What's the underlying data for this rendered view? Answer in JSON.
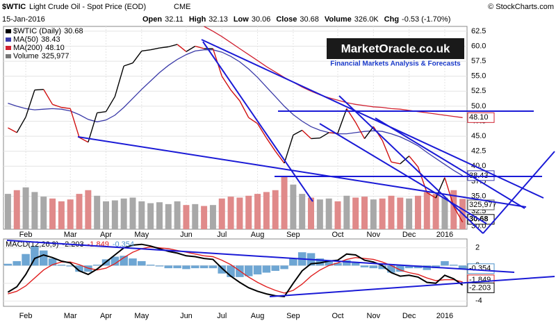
{
  "header": {
    "symbol": "$WTIC",
    "name": "Light Crude Oil - Spot Price (EOD)",
    "exchange": "CME",
    "source": "© StockCharts.com",
    "date": "15-Jan-2016",
    "quote": [
      {
        "label": "Open",
        "value": "32.11"
      },
      {
        "label": "High",
        "value": "32.13"
      },
      {
        "label": "Low",
        "value": "30.06"
      },
      {
        "label": "Close",
        "value": "30.68"
      },
      {
        "label": "Volume",
        "value": "326.0K"
      },
      {
        "label": "Chg",
        "value": "-0.53 (-1.70%)"
      }
    ]
  },
  "logo": {
    "title": "MarketOracle.co.uk",
    "subtitle": "Financial Markets Analysis & Forecasts"
  },
  "chart_data": [
    {
      "type": "price",
      "categories": [
        null,
        null,
        "Feb",
        null,
        null,
        null,
        null,
        "Mar",
        null,
        null,
        null,
        "Apr",
        null,
        null,
        null,
        "May",
        null,
        null,
        null,
        null,
        "Jun",
        null,
        null,
        null,
        "Jul",
        null,
        null,
        null,
        "Aug",
        null,
        null,
        null,
        "Sep",
        null,
        null,
        null,
        null,
        "Oct",
        null,
        null,
        null,
        "Nov",
        null,
        null,
        null,
        "Dec",
        null,
        null,
        null,
        "2016",
        null,
        null
      ],
      "series": [
        {
          "name": "$WTIC (Daily)",
          "color": "#000000",
          "values": [
            46.4,
            45.6,
            48.2,
            52.7,
            52.8,
            50.3,
            49.8,
            49.6,
            44.8,
            44.0,
            48.9,
            49.1,
            51.6,
            56.7,
            57.2,
            59.2,
            59.4,
            59.7,
            59.9,
            60.3,
            59.1,
            60.0,
            59.6,
            59.6,
            55.0,
            52.7,
            50.9,
            48.1,
            47.1,
            44.7,
            42.5,
            40.5,
            45.2,
            46.0,
            44.6,
            44.7,
            45.6,
            45.5,
            49.6,
            47.3,
            44.6,
            46.6,
            44.3,
            40.7,
            40.4,
            41.7,
            39.9,
            35.6,
            34.7,
            38.1,
            33.3,
            30.68
          ]
        },
        {
          "name": "MA(50)",
          "color": "#3a3aa8",
          "values": [
            50.5,
            50.0,
            49.6,
            49.4,
            49.5,
            49.6,
            49.5,
            49.2,
            48.6,
            47.8,
            47.4,
            47.7,
            48.5,
            49.8,
            51.3,
            52.8,
            54.2,
            55.6,
            56.8,
            57.8,
            58.6,
            59.2,
            59.4,
            59.4,
            59.0,
            58.3,
            57.4,
            56.2,
            54.8,
            53.2,
            51.6,
            50.0,
            48.6,
            47.5,
            46.6,
            46.0,
            45.6,
            45.4,
            45.4,
            45.6,
            45.8,
            45.9,
            45.8,
            45.4,
            44.9,
            44.2,
            43.4,
            42.3,
            41.3,
            40.3,
            39.3,
            38.43
          ]
        },
        {
          "name": "MA(200)",
          "color": "#d02030",
          "last_label": "48.10",
          "values": [
            null,
            null,
            null,
            null,
            null,
            null,
            null,
            null,
            null,
            null,
            null,
            null,
            null,
            null,
            null,
            null,
            null,
            null,
            null,
            null,
            null,
            null,
            63.3,
            62.5,
            61.6,
            60.6,
            59.6,
            58.6,
            57.6,
            56.6,
            55.7,
            54.8,
            54.0,
            53.2,
            52.5,
            51.9,
            51.4,
            51.0,
            50.6,
            50.3,
            50.1,
            49.9,
            49.8,
            49.6,
            49.5,
            49.3,
            49.1,
            48.9,
            48.7,
            48.5,
            48.3,
            48.1
          ]
        }
      ],
      "volume": {
        "name": "Volume",
        "last_label": "325,977",
        "up_color": "#a8a8a8",
        "down_color": "#e08a8a",
        "values": [
          380000,
          420000,
          450000,
          400000,
          350000,
          330000,
          300000,
          320000,
          380000,
          420000,
          360000,
          300000,
          310000,
          330000,
          340000,
          300000,
          280000,
          290000,
          270000,
          300000,
          260000,
          270000,
          250000,
          260000,
          330000,
          350000,
          340000,
          360000,
          380000,
          400000,
          420000,
          560000,
          480000,
          380000,
          340000,
          320000,
          330000,
          300000,
          360000,
          340000,
          350000,
          320000,
          330000,
          360000,
          340000,
          330000,
          360000,
          400000,
          380000,
          340000,
          420000,
          325977
        ]
      },
      "ylim": [
        29.5,
        63.3
      ],
      "yticks": [
        {
          "value": 30,
          "label": "30.0"
        },
        32.5,
        {
          "value": 35,
          "label": "35.0"
        },
        37.5,
        {
          "value": 40,
          "label": "40.0"
        },
        42.5,
        {
          "value": 45,
          "label": "45.0"
        },
        47.5,
        {
          "value": 50,
          "label": "50.0"
        },
        52.5,
        {
          "value": 55,
          "label": "55.0"
        },
        57.5,
        {
          "value": 60,
          "label": "60.0"
        },
        62.5
      ],
      "grid": true
    },
    {
      "type": "macd",
      "title": "MACD(12,26,9)",
      "series": [
        {
          "name": "MACD",
          "color": "#000000",
          "values": [
            -3.0,
            -2.4,
            -1.0,
            0.8,
            1.2,
            0.9,
            0.5,
            0.3,
            -0.6,
            -1.0,
            -0.4,
            0.4,
            1.2,
            2.0,
            2.3,
            2.4,
            2.2,
            1.9,
            1.6,
            1.4,
            1.1,
            1.0,
            0.8,
            0.7,
            -0.3,
            -1.2,
            -1.9,
            -2.5,
            -2.9,
            -3.2,
            -3.4,
            -3.5,
            -2.0,
            -0.6,
            0.2,
            0.3,
            0.5,
            0.6,
            1.3,
            1.2,
            0.6,
            0.4,
            0.0,
            -0.8,
            -1.2,
            -1.1,
            -1.3,
            -1.9,
            -2.0,
            -1.1,
            -1.5,
            -2.203
          ]
        },
        {
          "name": "Signal",
          "color": "#e02020",
          "values": [
            -3.2,
            -2.9,
            -2.3,
            -1.4,
            -0.5,
            0.1,
            0.4,
            0.4,
            0.1,
            -0.3,
            -0.5,
            -0.3,
            0.2,
            0.9,
            1.5,
            1.9,
            2.1,
            2.0,
            1.9,
            1.7,
            1.5,
            1.3,
            1.1,
            1.0,
            0.6,
            0.1,
            -0.6,
            -1.3,
            -1.9,
            -2.4,
            -2.8,
            -3.1,
            -2.8,
            -2.1,
            -1.2,
            -0.5,
            0.0,
            0.3,
            0.7,
            0.9,
            0.8,
            0.7,
            0.4,
            0.0,
            -0.5,
            -0.8,
            -1.0,
            -1.4,
            -1.7,
            -1.6,
            -1.6,
            -1.849
          ]
        },
        {
          "name": "Histogram",
          "color": "#4a90c8",
          "values": [
            0.2,
            0.5,
            1.3,
            2.2,
            1.7,
            0.8,
            0.1,
            -0.1,
            -0.7,
            -0.7,
            0.1,
            0.7,
            1.0,
            1.1,
            0.8,
            0.5,
            0.1,
            -0.1,
            -0.3,
            -0.3,
            -0.4,
            -0.3,
            -0.3,
            -0.3,
            -0.9,
            -1.3,
            -1.3,
            -1.2,
            -1.0,
            -0.8,
            -0.6,
            -0.4,
            0.8,
            1.5,
            1.4,
            0.8,
            0.5,
            0.3,
            0.6,
            0.3,
            -0.2,
            -0.3,
            -0.4,
            -0.8,
            -0.7,
            -0.3,
            -0.3,
            -0.5,
            -0.3,
            0.5,
            0.1,
            -0.354
          ]
        }
      ],
      "ylim": [
        -4.6,
        3.0
      ],
      "yticks": [
        -4,
        -2,
        0,
        2
      ],
      "grid": true
    }
  ]
}
